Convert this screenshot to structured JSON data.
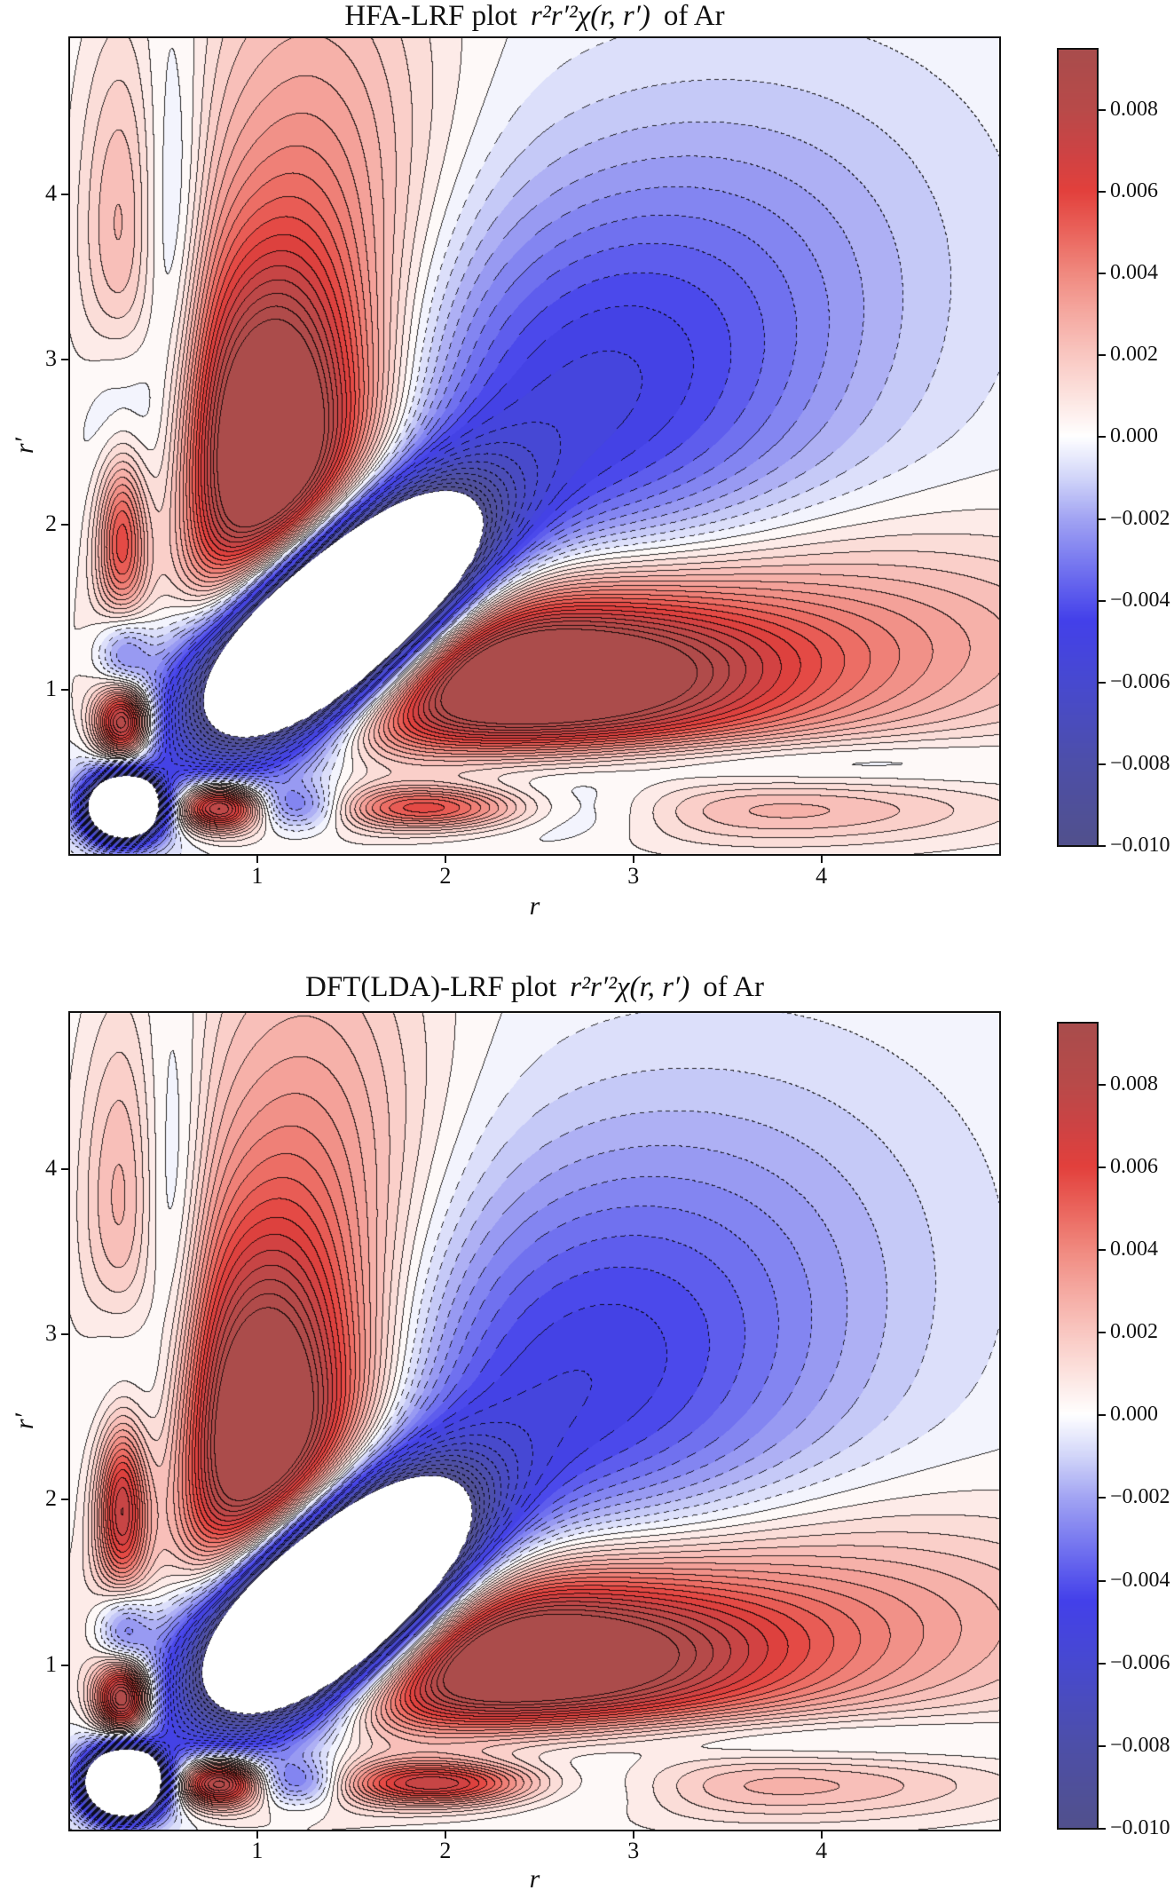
{
  "figure": {
    "background": "#ffffff"
  },
  "chart_data": [
    {
      "type": "contour",
      "title_prefix": "HFA-LRF plot",
      "title_math": "r²r′²χ(r, r′)",
      "title_suffix": "of Ar",
      "xlabel": "r",
      "ylabel": "r′",
      "xlim": [
        0,
        4.95
      ],
      "ylim": [
        0,
        4.95
      ],
      "x_ticks": [
        1,
        2,
        3,
        4
      ],
      "y_ticks": [
        1,
        2,
        3,
        4
      ],
      "grid": false,
      "colorbar": {
        "vmin": -0.01,
        "vmax": 0.0095,
        "tick_labels": [
          "0.008",
          "0.006",
          "0.004",
          "0.002",
          "0.000",
          "−0.002",
          "−0.004",
          "−0.006",
          "−0.008",
          "−0.010"
        ],
        "tick_values": [
          0.008,
          0.006,
          0.004,
          0.002,
          0.0,
          -0.002,
          -0.004,
          -0.006,
          -0.008,
          -0.01
        ]
      },
      "contour_style": {
        "level_step": 0.0005,
        "negative_linestyle": "dashed",
        "positive_linestyle": "solid",
        "line_color": "#1a1a1a",
        "under_color": "#ffffff"
      },
      "colormap": [
        [
          0.0,
          "#51508c"
        ],
        [
          0.103,
          "#4d4fa8"
        ],
        [
          0.205,
          "#4749d0"
        ],
        [
          0.282,
          "#4340ea"
        ],
        [
          0.359,
          "#7b7cf0"
        ],
        [
          0.41,
          "#a2a4f3"
        ],
        [
          0.462,
          "#d2d6f9"
        ],
        [
          0.513,
          "#ffffff"
        ],
        [
          0.564,
          "#fce3df"
        ],
        [
          0.615,
          "#f9c7c1"
        ],
        [
          0.667,
          "#f5a9a1"
        ],
        [
          0.718,
          "#f0897f"
        ],
        [
          0.769,
          "#ea645c"
        ],
        [
          0.821,
          "#e2403c"
        ],
        [
          0.872,
          "#cc4344"
        ],
        [
          0.923,
          "#b84a49"
        ],
        [
          1.0,
          "#a84c4c"
        ]
      ],
      "features": [
        {
          "name": "upper-positive-lobe",
          "a": 0.0125,
          "cx": 1.08,
          "cy": 2.3,
          "sx": 0.4,
          "sy": 0.88
        },
        {
          "name": "right-positive-lobe",
          "a": 0.0125,
          "cx": 2.3,
          "cy": 1.08,
          "sx": 0.95,
          "sy": 0.4
        },
        {
          "name": "right-positive-tail",
          "a": 0.0035,
          "cx": 3.9,
          "cy": 1.3,
          "sx": 1.25,
          "sy": 0.5
        },
        {
          "name": "upper-positive-tail",
          "a": 0.0035,
          "cx": 1.3,
          "cy": 3.9,
          "sx": 0.5,
          "sy": 1.25
        },
        {
          "name": "diagonal-negative-trench",
          "rot": true,
          "a": -0.042,
          "u0": 1.95,
          "su": 0.58,
          "sv": 0.3
        },
        {
          "name": "broad-upper-right-negative",
          "rot": true,
          "a": -0.0052,
          "u0": 3.89,
          "su": 1.25,
          "sv": 0.85
        },
        {
          "name": "origin-negative-core",
          "a": -0.027,
          "cx": 0.29,
          "cy": 0.29,
          "sx": 0.13,
          "sy": 0.13
        },
        {
          "name": "shell-positive-left-low",
          "a": 0.01,
          "cx": 0.29,
          "cy": 0.8,
          "sx": 0.105,
          "sy": 0.165
        },
        {
          "name": "shell-positive-bottom-low",
          "a": 0.01,
          "cx": 0.8,
          "cy": 0.29,
          "sx": 0.165,
          "sy": 0.105
        },
        {
          "name": "shell-negative-left",
          "a": -0.0042,
          "cx": 0.29,
          "cy": 1.22,
          "sx": 0.1,
          "sy": 0.2
        },
        {
          "name": "shell-negative-bottom",
          "a": -0.0042,
          "cx": 1.22,
          "cy": 0.29,
          "sx": 0.2,
          "sy": 0.1
        },
        {
          "name": "shell-positive-left-mid",
          "a": 0.0062,
          "cx": 0.28,
          "cy": 1.97,
          "sx": 0.095,
          "sy": 0.4
        },
        {
          "name": "shell-positive-bottom-mid",
          "a": 0.0062,
          "cx": 1.97,
          "cy": 0.28,
          "sx": 0.4,
          "sy": 0.095
        },
        {
          "name": "shell-negative-bottom-outer",
          "a": -0.0034,
          "cx": 2.5,
          "cy": 0.28,
          "sx": 0.48,
          "sy": 0.13
        },
        {
          "name": "shell-negative-left-outer",
          "a": -0.0034,
          "cx": 0.28,
          "cy": 2.5,
          "sx": 0.13,
          "sy": 0.48
        },
        {
          "name": "bottom-right-positive-tail",
          "a": 0.0024,
          "cx": 3.8,
          "cy": 0.3,
          "sx": 0.85,
          "sy": 0.17
        },
        {
          "name": "top-left-positive-tail",
          "a": 0.0024,
          "cx": 0.3,
          "cy": 3.8,
          "sx": 0.17,
          "sy": 0.85
        },
        {
          "name": "left-divider-negative",
          "a": -0.0038,
          "cx": 0.54,
          "cy": 3.1,
          "sx": 0.14,
          "sy": 1.2
        },
        {
          "name": "bottom-divider-negative",
          "a": -0.0038,
          "cx": 3.1,
          "cy": 0.54,
          "sx": 1.2,
          "sy": 0.14
        }
      ]
    },
    {
      "type": "contour",
      "title_prefix": "DFT(LDA)-LRF plot",
      "title_math": "r²r′²χ(r, r′)",
      "title_suffix": "of Ar",
      "xlabel": "r",
      "ylabel": "r′",
      "xlim": [
        0,
        4.95
      ],
      "ylim": [
        0,
        4.95
      ],
      "x_ticks": [
        1,
        2,
        3,
        4
      ],
      "y_ticks": [
        1,
        2,
        3,
        4
      ],
      "grid": false,
      "colorbar": {
        "vmin": -0.01,
        "vmax": 0.0095,
        "tick_labels": [
          "0.008",
          "0.006",
          "0.004",
          "0.002",
          "0.000",
          "−0.002",
          "−0.004",
          "−0.006",
          "−0.008",
          "−0.010"
        ],
        "tick_values": [
          0.008,
          0.006,
          0.004,
          0.002,
          0.0,
          -0.002,
          -0.004,
          -0.006,
          -0.008,
          -0.01
        ]
      },
      "contour_style": {
        "level_step": 0.0005,
        "negative_linestyle": "dashed",
        "positive_linestyle": "solid",
        "line_color": "#1a1a1a",
        "under_color": "#ffffff"
      },
      "colormap": [
        [
          0.0,
          "#51508c"
        ],
        [
          0.103,
          "#4d4fa8"
        ],
        [
          0.205,
          "#4749d0"
        ],
        [
          0.282,
          "#4340ea"
        ],
        [
          0.359,
          "#7b7cf0"
        ],
        [
          0.41,
          "#a2a4f3"
        ],
        [
          0.462,
          "#d2d6f9"
        ],
        [
          0.513,
          "#ffffff"
        ],
        [
          0.564,
          "#fce3df"
        ],
        [
          0.615,
          "#f9c7c1"
        ],
        [
          0.667,
          "#f5a9a1"
        ],
        [
          0.718,
          "#f0897f"
        ],
        [
          0.769,
          "#ea645c"
        ],
        [
          0.821,
          "#e2403c"
        ],
        [
          0.872,
          "#cc4344"
        ],
        [
          0.923,
          "#b84a49"
        ],
        [
          1.0,
          "#a84c4c"
        ]
      ],
      "features": [
        {
          "name": "upper-positive-lobe",
          "a": 0.0122,
          "cx": 1.04,
          "cy": 2.22,
          "sx": 0.4,
          "sy": 0.92
        },
        {
          "name": "right-positive-lobe",
          "a": 0.0122,
          "cx": 2.22,
          "cy": 1.04,
          "sx": 0.98,
          "sy": 0.4
        },
        {
          "name": "right-positive-tail",
          "a": 0.0035,
          "cx": 3.85,
          "cy": 1.28,
          "sx": 1.25,
          "sy": 0.5
        },
        {
          "name": "upper-positive-tail",
          "a": 0.0035,
          "cx": 1.28,
          "cy": 3.85,
          "sx": 0.5,
          "sy": 1.25
        },
        {
          "name": "diagonal-negative-trench",
          "rot": true,
          "a": -0.044,
          "u0": 1.9,
          "su": 0.56,
          "sv": 0.315
        },
        {
          "name": "broad-upper-right-negative",
          "rot": true,
          "a": -0.005,
          "u0": 3.82,
          "su": 1.22,
          "sv": 0.88
        },
        {
          "name": "origin-negative-core",
          "a": -0.03,
          "cx": 0.29,
          "cy": 0.29,
          "sx": 0.135,
          "sy": 0.135
        },
        {
          "name": "shell-positive-left-low",
          "a": 0.0105,
          "cx": 0.29,
          "cy": 0.8,
          "sx": 0.105,
          "sy": 0.165
        },
        {
          "name": "shell-positive-bottom-low",
          "a": 0.0105,
          "cx": 0.8,
          "cy": 0.29,
          "sx": 0.165,
          "sy": 0.105
        },
        {
          "name": "shell-negative-left",
          "a": -0.0046,
          "cx": 0.29,
          "cy": 1.22,
          "sx": 0.1,
          "sy": 0.2
        },
        {
          "name": "shell-negative-bottom",
          "a": -0.0046,
          "cx": 1.22,
          "cy": 0.29,
          "sx": 0.2,
          "sy": 0.1
        },
        {
          "name": "shell-positive-left-mid",
          "a": 0.0075,
          "cx": 0.28,
          "cy": 2.0,
          "sx": 0.095,
          "sy": 0.4
        },
        {
          "name": "shell-positive-bottom-mid",
          "a": 0.0075,
          "cx": 2.0,
          "cy": 0.28,
          "sx": 0.4,
          "sy": 0.095
        },
        {
          "name": "shell-negative-bottom-outer",
          "a": -0.0034,
          "cx": 2.55,
          "cy": 0.28,
          "sx": 0.48,
          "sy": 0.13
        },
        {
          "name": "shell-negative-left-outer",
          "a": -0.0034,
          "cx": 0.28,
          "cy": 2.55,
          "sx": 0.13,
          "sy": 0.48
        },
        {
          "name": "bottom-right-positive-tail",
          "a": 0.0024,
          "cx": 3.8,
          "cy": 0.3,
          "sx": 0.85,
          "sy": 0.17
        },
        {
          "name": "top-left-positive-tail",
          "a": 0.0024,
          "cx": 0.3,
          "cy": 3.8,
          "sx": 0.17,
          "sy": 0.85
        },
        {
          "name": "left-divider-negative",
          "a": -0.0038,
          "cx": 0.54,
          "cy": 3.1,
          "sx": 0.14,
          "sy": 1.2
        },
        {
          "name": "bottom-divider-negative",
          "a": -0.0038,
          "cx": 3.1,
          "cy": 0.54,
          "sx": 1.2,
          "sy": 0.14
        }
      ]
    }
  ]
}
